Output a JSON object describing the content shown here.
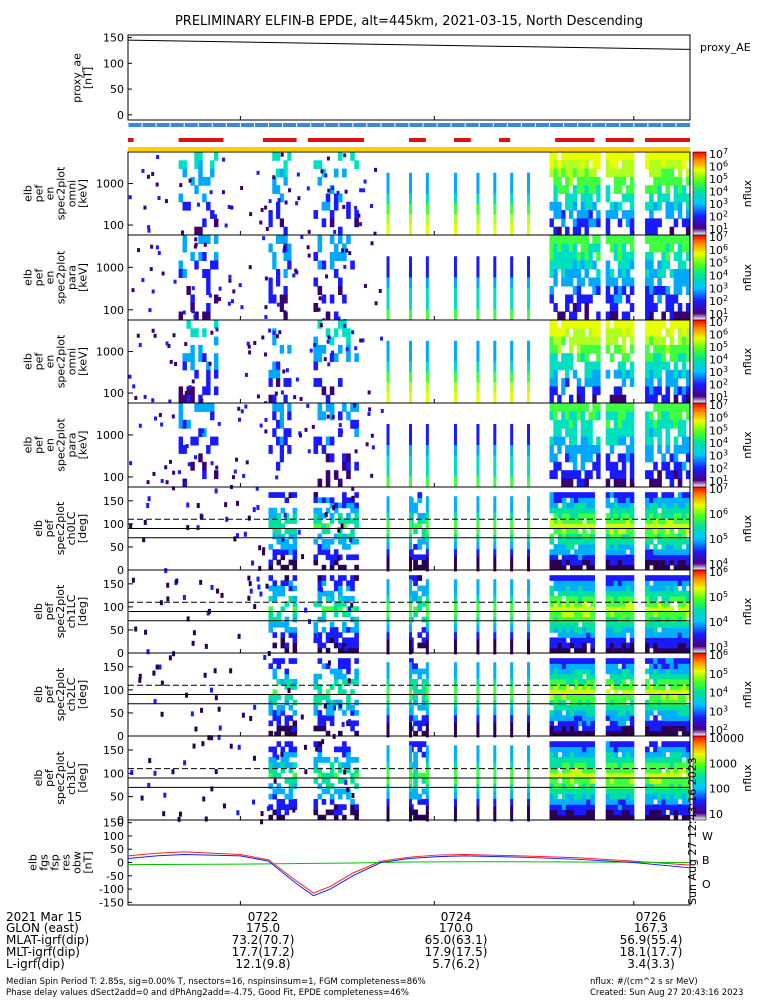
{
  "title": "PRELIMINARY ELFIN-B EPDE, alt=445km, 2021-03-15, North Descending",
  "chart_data": {
    "type": "heatmap",
    "title": "PRELIMINARY ELFIN-B EPDE, alt=445km, 2021-03-15, North Descending",
    "time_ticks": [
      "0722",
      "0724",
      "0726"
    ],
    "proxy_ae": {
      "ylabel": "proxy_ae [nT]",
      "legend": "proxy_AE",
      "yticks": [
        "150",
        "100",
        "50",
        "0"
      ],
      "ylim": [
        -10,
        155
      ],
      "x": [
        0,
        1
      ],
      "values": [
        145,
        127
      ]
    },
    "orbit_bars": {
      "red_segments": [
        [
          0.0,
          0.01
        ],
        [
          0.09,
          0.17
        ],
        [
          0.24,
          0.3
        ],
        [
          0.32,
          0.42
        ],
        [
          0.5,
          0.53
        ],
        [
          0.58,
          0.61
        ],
        [
          0.66,
          0.68
        ],
        [
          0.76,
          0.83
        ],
        [
          0.85,
          0.9
        ],
        [
          0.92,
          1.0
        ]
      ],
      "blue": "#3a86e0",
      "red": "#e01010",
      "yellow": "#ffd000"
    },
    "spectra": [
      {
        "id": "p1",
        "ylabel": [
          "elb",
          "pef",
          "en",
          "spec2plot",
          "omni",
          "[keV]"
        ],
        "yticks": [
          "1000",
          "100"
        ],
        "colorbar_label": "nflux",
        "cbar_ticks": [
          "10",
          "10",
          "10",
          "10",
          "10",
          "10",
          "10"
        ],
        "cbar_exps": [
          "7",
          "6",
          "5",
          "4",
          "3",
          "2",
          "1"
        ]
      },
      {
        "id": "p2",
        "ylabel": [
          "elb",
          "pef",
          "en",
          "spec2plot",
          "para",
          "[keV]"
        ],
        "yticks": [
          "1000",
          "100"
        ],
        "colorbar_label": "nflux",
        "cbar_ticks": [
          "10",
          "10",
          "10",
          "10",
          "10",
          "10",
          "10"
        ],
        "cbar_exps": [
          "7",
          "6",
          "5",
          "4",
          "3",
          "2",
          "1"
        ]
      },
      {
        "id": "p3",
        "ylabel": [
          "elb",
          "pef",
          "en",
          "spec2plot",
          "omni",
          "[keV]"
        ],
        "yticks": [
          "1000",
          "100"
        ],
        "colorbar_label": "nflux",
        "cbar_ticks": [
          "10",
          "10",
          "10",
          "10",
          "10",
          "10",
          "10"
        ],
        "cbar_exps": [
          "7",
          "6",
          "5",
          "4",
          "3",
          "2",
          "1"
        ]
      },
      {
        "id": "p4",
        "ylabel": [
          "elb",
          "pef",
          "en",
          "spec2plot",
          "para",
          "[keV]"
        ],
        "yticks": [
          "1000",
          "100"
        ],
        "colorbar_label": "nflux",
        "cbar_ticks": [
          "10",
          "10",
          "10",
          "10",
          "10",
          "10",
          "10"
        ],
        "cbar_exps": [
          "7",
          "6",
          "5",
          "4",
          "3",
          "2",
          "1"
        ]
      }
    ],
    "pitch_angle": [
      {
        "id": "p5",
        "ylabel": [
          "elb",
          "pef",
          "spec2plot",
          "ch0LC",
          "[deg]"
        ],
        "yticks": [
          "150",
          "100",
          "50",
          "0"
        ],
        "colorbar_label": "nflux",
        "cbar_ticks": [
          "10",
          "10",
          "10",
          "10"
        ],
        "cbar_exps": [
          "7",
          "6",
          "5",
          "4"
        ]
      },
      {
        "id": "p6",
        "ylabel": [
          "elb",
          "pef",
          "spec2plot",
          "ch1LC",
          "[deg]"
        ],
        "yticks": [
          "150",
          "100",
          "50",
          "0"
        ],
        "colorbar_label": "nflux",
        "cbar_ticks": [
          "10",
          "10",
          "10",
          "10"
        ],
        "cbar_exps": [
          "6",
          "5",
          "4",
          "3"
        ]
      },
      {
        "id": "p7",
        "ylabel": [
          "elb",
          "pef",
          "spec2plot",
          "ch2LC",
          "[deg]"
        ],
        "yticks": [
          "150",
          "100",
          "50",
          "0"
        ],
        "colorbar_label": "nflux",
        "cbar_ticks": [
          "10",
          "10",
          "10",
          "10",
          "10"
        ],
        "cbar_exps": [
          "6",
          "5",
          "4",
          "3",
          "2"
        ]
      },
      {
        "id": "p8",
        "ylabel": [
          "elb",
          "pef",
          "spec2plot",
          "ch3LC",
          "[deg]"
        ],
        "yticks": [
          "150",
          "100",
          "50",
          "0"
        ],
        "colorbar_label": "nflux",
        "cbar_ticks": [
          "10000",
          "1000",
          "100",
          "10"
        ],
        "cbar_exps": [
          "",
          "",
          "",
          ""
        ]
      }
    ],
    "fgs": {
      "ylabel": [
        "elb",
        "fgs",
        "fsp",
        "res",
        "obw",
        "[nT]"
      ],
      "yticks": [
        "150",
        "100",
        "50",
        "0",
        "-50",
        "-100",
        "-150"
      ],
      "ylim": [
        -160,
        160
      ],
      "legend": [
        "W",
        "B",
        "O"
      ],
      "side_note": "Sun Aug 27 12:43:16 2023",
      "series": [
        {
          "name": "W",
          "color": "#ff2020",
          "x": [
            0,
            0.05,
            0.1,
            0.2,
            0.25,
            0.3,
            0.33,
            0.36,
            0.4,
            0.45,
            0.5,
            0.55,
            0.6,
            0.7,
            0.8,
            0.9,
            1.0
          ],
          "y": [
            25,
            35,
            40,
            30,
            10,
            -70,
            -115,
            -90,
            -40,
            5,
            20,
            28,
            30,
            25,
            18,
            5,
            -10
          ]
        },
        {
          "name": "B",
          "color": "#00c000",
          "x": [
            0,
            0.2,
            0.4,
            0.5,
            0.6,
            0.8,
            1.0
          ],
          "y": [
            -8,
            -6,
            -2,
            2,
            3,
            2,
            0
          ]
        },
        {
          "name": "O",
          "color": "#1020ff",
          "x": [
            0,
            0.05,
            0.1,
            0.2,
            0.25,
            0.3,
            0.33,
            0.36,
            0.4,
            0.45,
            0.5,
            0.55,
            0.6,
            0.7,
            0.8,
            0.9,
            1.0
          ],
          "y": [
            15,
            25,
            30,
            25,
            5,
            -80,
            -125,
            -100,
            -50,
            0,
            15,
            22,
            25,
            20,
            12,
            0,
            -20
          ]
        }
      ]
    },
    "ephemeris": {
      "labels": [
        "2021 Mar 15",
        "GLON (east)",
        "MLAT-igrf(dip)",
        "MLT-igrf(dip)",
        "L-igrf(dip)"
      ],
      "columns": [
        {
          "time": "0722",
          "values": [
            "175.0",
            "73.2(70.7)",
            "17.7(17.2)",
            "12.1(9.8)"
          ]
        },
        {
          "time": "0724",
          "values": [
            "170.0",
            "65.0(63.1)",
            "17.9(17.5)",
            "5.7(6.2)"
          ]
        },
        {
          "time": "0726",
          "values": [
            "167.3",
            "56.9(55.4)",
            "18.1(17.7)",
            "3.4(3.3)"
          ]
        }
      ]
    }
  },
  "footer": {
    "left1": "Median Spin Period T: 2.85s, sig=0.00% T, nsectors=16, nspinsinsum=1, FGM completeness=86%",
    "left2": "Phase delay values dSect2add=0 and dPhAng2add=-4.75, Good Fit, EPDE completeness=46%",
    "right1": "nflux: #/(cm^2 s sr MeV)",
    "right2": "Created: Sun Aug 27 20:43:16 2023"
  }
}
